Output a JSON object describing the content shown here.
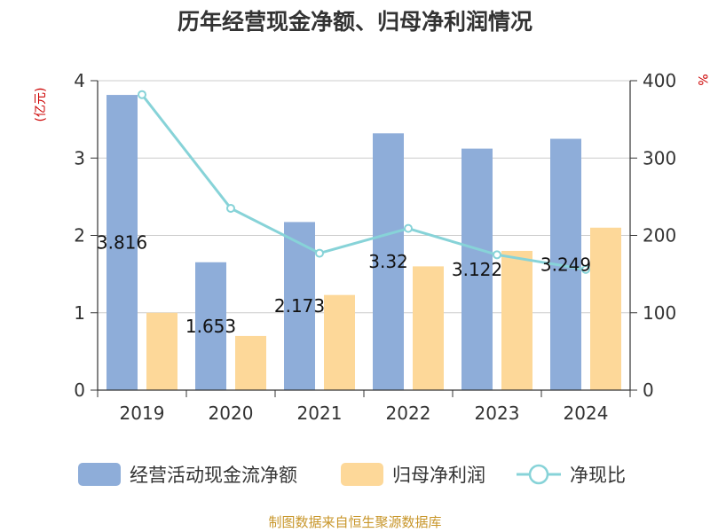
{
  "chart_data": {
    "type": "bar",
    "title": "历年经营现金净额、归母净利润情况",
    "categories": [
      "2019",
      "2020",
      "2021",
      "2022",
      "2023",
      "2024"
    ],
    "series": [
      {
        "name": "经营活动现金流净额",
        "kind": "bar",
        "axis": "left",
        "color": "#8eadd9",
        "values": [
          3.816,
          1.653,
          2.173,
          3.32,
          3.122,
          3.249
        ]
      },
      {
        "name": "归母净利润",
        "kind": "bar",
        "axis": "left",
        "color": "#fdd899",
        "values": [
          1.0,
          0.7,
          1.23,
          1.6,
          1.8,
          2.1
        ]
      },
      {
        "name": "净现比",
        "kind": "line",
        "axis": "right",
        "color": "#87d3d8",
        "values": [
          382,
          235,
          177,
          209,
          175,
          156
        ]
      }
    ],
    "data_labels": [
      "3.816",
      "1.653",
      "2.173",
      "3.32",
      "3.122",
      "3.249"
    ],
    "y_left": {
      "label": "(亿元)",
      "min": 0,
      "max": 4,
      "ticks": [
        "0",
        "1",
        "2",
        "3",
        "4"
      ]
    },
    "y_right": {
      "label": "%",
      "min": 0,
      "max": 400,
      "ticks": [
        "0",
        "100",
        "200",
        "300",
        "400"
      ]
    },
    "legend_position": "bottom",
    "grid": true
  },
  "source_text": "制图数据来自恒生聚源数据库",
  "colors": {
    "axis_label": "#cc0000",
    "source": "#c8962a",
    "grid": "#cccccc",
    "axis": "#333333"
  }
}
